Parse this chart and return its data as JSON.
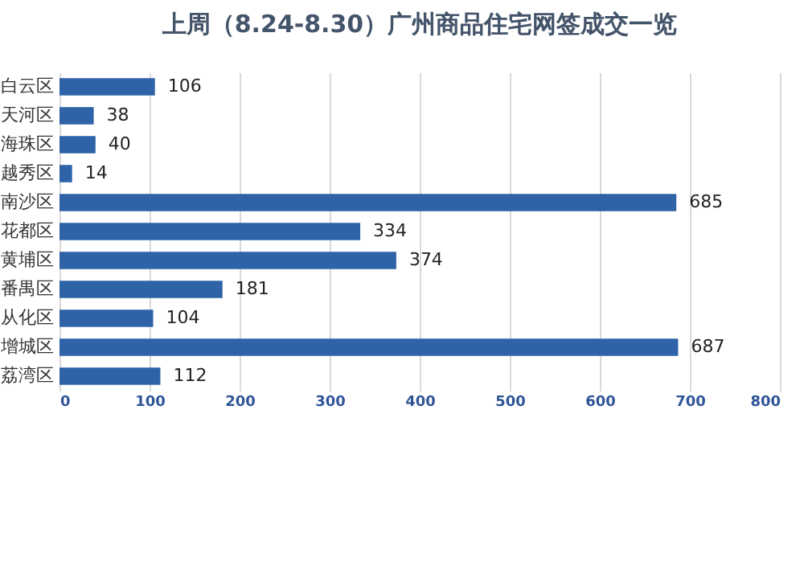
{
  "chart_data": {
    "type": "bar",
    "orientation": "horizontal",
    "title": "上周（8.24-8.30）广州商品住宅网签成交一览",
    "categories": [
      "白云区",
      "天河区",
      "海珠区",
      "越秀区",
      "南沙区",
      "花都区",
      "黄埔区",
      "番禺区",
      "从化区",
      "增城区",
      "荔湾区"
    ],
    "values": [
      106,
      38,
      40,
      14,
      685,
      334,
      374,
      181,
      104,
      687,
      112
    ],
    "color": "#2e63a8",
    "xlim": [
      0,
      800
    ],
    "xticks": [
      0,
      100,
      200,
      300,
      400,
      500,
      600,
      700,
      800
    ],
    "grid": "x",
    "data_labels": true
  }
}
